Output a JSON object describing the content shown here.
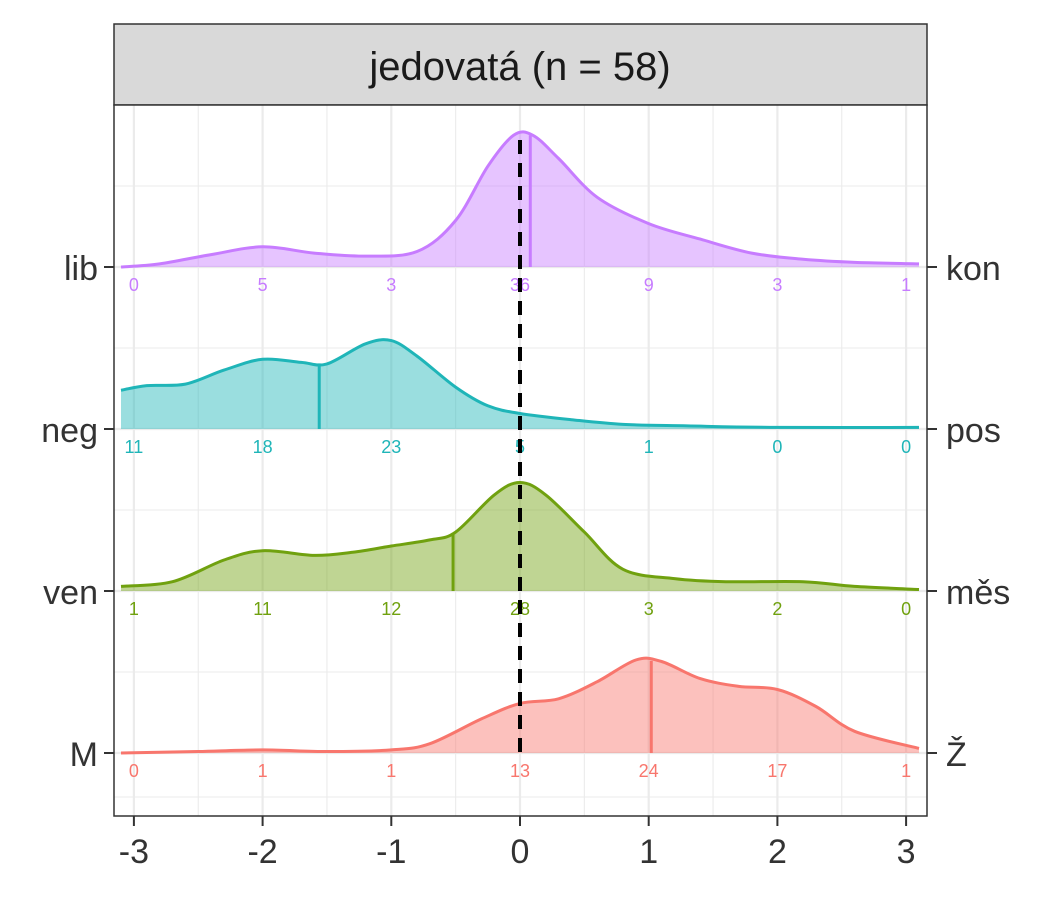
{
  "chart_data": {
    "type": "ridgeline",
    "facet_title": "jedovatá (n = 58)",
    "x_ticks": [
      -3,
      -2,
      -1,
      0,
      1,
      2,
      3
    ],
    "x_tick_labels": [
      "-3",
      "-2",
      "-1",
      "0",
      "1",
      "2",
      "3"
    ],
    "xlim": [
      -3.1,
      3.1
    ],
    "reference_line_x": 0,
    "grid": true,
    "series": [
      {
        "left_label": "lib",
        "right_label": "kon",
        "color": "#C77CFF",
        "mean": 0.08,
        "counts": [
          0,
          5,
          3,
          36,
          9,
          3,
          1
        ],
        "density": [
          [
            -3.1,
            0.0
          ],
          [
            -2.8,
            0.02
          ],
          [
            -2.4,
            0.08
          ],
          [
            -2.0,
            0.13
          ],
          [
            -1.6,
            0.09
          ],
          [
            -1.2,
            0.07
          ],
          [
            -0.8,
            0.1
          ],
          [
            -0.5,
            0.3
          ],
          [
            -0.25,
            0.65
          ],
          [
            -0.05,
            0.85
          ],
          [
            0.1,
            0.85
          ],
          [
            0.3,
            0.7
          ],
          [
            0.6,
            0.45
          ],
          [
            1.0,
            0.28
          ],
          [
            1.4,
            0.18
          ],
          [
            1.8,
            0.09
          ],
          [
            2.2,
            0.05
          ],
          [
            2.6,
            0.03
          ],
          [
            3.1,
            0.02
          ]
        ]
      },
      {
        "left_label": "neg",
        "right_label": "pos",
        "color": "#1FB5B8",
        "mean": -1.56,
        "counts": [
          11,
          18,
          23,
          5,
          1,
          0,
          0
        ],
        "density": [
          [
            -3.1,
            0.25
          ],
          [
            -2.9,
            0.28
          ],
          [
            -2.6,
            0.29
          ],
          [
            -2.3,
            0.38
          ],
          [
            -2.0,
            0.45
          ],
          [
            -1.7,
            0.43
          ],
          [
            -1.5,
            0.42
          ],
          [
            -1.2,
            0.55
          ],
          [
            -1.0,
            0.57
          ],
          [
            -0.8,
            0.47
          ],
          [
            -0.5,
            0.27
          ],
          [
            -0.25,
            0.15
          ],
          [
            0.0,
            0.1
          ],
          [
            0.4,
            0.06
          ],
          [
            0.8,
            0.03
          ],
          [
            1.3,
            0.02
          ],
          [
            2.0,
            0.01
          ],
          [
            3.1,
            0.01
          ]
        ]
      },
      {
        "left_label": "ven",
        "right_label": "měs",
        "color": "#70A10F",
        "mean": -0.52,
        "counts": [
          1,
          11,
          12,
          28,
          3,
          2,
          0
        ],
        "density": [
          [
            -3.1,
            0.03
          ],
          [
            -2.7,
            0.06
          ],
          [
            -2.3,
            0.2
          ],
          [
            -2.0,
            0.26
          ],
          [
            -1.6,
            0.23
          ],
          [
            -1.3,
            0.25
          ],
          [
            -1.0,
            0.29
          ],
          [
            -0.7,
            0.33
          ],
          [
            -0.5,
            0.38
          ],
          [
            -0.2,
            0.62
          ],
          [
            0.0,
            0.7
          ],
          [
            0.2,
            0.62
          ],
          [
            0.5,
            0.38
          ],
          [
            0.8,
            0.14
          ],
          [
            1.2,
            0.08
          ],
          [
            1.6,
            0.06
          ],
          [
            2.2,
            0.06
          ],
          [
            2.6,
            0.03
          ],
          [
            3.1,
            0.01
          ]
        ]
      },
      {
        "left_label": "M",
        "right_label": "Ž",
        "color": "#F8766D",
        "mean": 1.02,
        "counts": [
          0,
          1,
          1,
          13,
          24,
          17,
          1
        ],
        "density": [
          [
            -3.1,
            0.0
          ],
          [
            -2.5,
            0.01
          ],
          [
            -2.0,
            0.02
          ],
          [
            -1.5,
            0.01
          ],
          [
            -1.0,
            0.02
          ],
          [
            -0.7,
            0.06
          ],
          [
            -0.3,
            0.22
          ],
          [
            0.0,
            0.32
          ],
          [
            0.3,
            0.35
          ],
          [
            0.6,
            0.46
          ],
          [
            0.9,
            0.6
          ],
          [
            1.1,
            0.59
          ],
          [
            1.4,
            0.48
          ],
          [
            1.7,
            0.43
          ],
          [
            2.0,
            0.41
          ],
          [
            2.3,
            0.3
          ],
          [
            2.6,
            0.14
          ],
          [
            3.1,
            0.03
          ]
        ]
      }
    ]
  }
}
